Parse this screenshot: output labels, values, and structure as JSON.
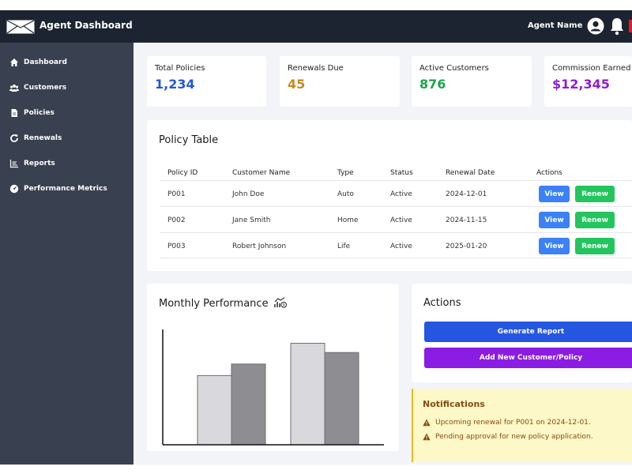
{
  "header": {
    "title": "Agent Dashboard",
    "agent_name": "Agent Name"
  },
  "sidebar": {
    "items": [
      {
        "label": "Dashboard",
        "icon": "home-icon"
      },
      {
        "label": "Customers",
        "icon": "users-icon"
      },
      {
        "label": "Policies",
        "icon": "document-icon"
      },
      {
        "label": "Renewals",
        "icon": "refresh-icon"
      },
      {
        "label": "Reports",
        "icon": "chart-icon"
      },
      {
        "label": "Performance Metrics",
        "icon": "gauge-icon"
      }
    ]
  },
  "stats": [
    {
      "label": "Total Policies",
      "value": "1,234",
      "color": "#2457d6"
    },
    {
      "label": "Renewals Due",
      "value": "45",
      "color": "#c78a1e"
    },
    {
      "label": "Active Customers",
      "value": "876",
      "color": "#1ea34b"
    },
    {
      "label": "Commission Earned",
      "value": "$12,345",
      "color": "#8a1fd6"
    }
  ],
  "policy_table": {
    "title": "Policy Table",
    "columns": [
      "Policy ID",
      "Customer Name",
      "Type",
      "Status",
      "Renewal Date",
      "Actions"
    ],
    "rows": [
      {
        "id": "P001",
        "customer": "John Doe",
        "type": "Auto",
        "status": "Active",
        "renewal": "2024-12-01"
      },
      {
        "id": "P002",
        "customer": "Jane Smith",
        "type": "Home",
        "status": "Active",
        "renewal": "2024-11-15"
      },
      {
        "id": "P003",
        "customer": "Robert Johnson",
        "type": "Life",
        "status": "Active",
        "renewal": "2025-01-20"
      }
    ],
    "view_label": "View",
    "renew_label": "Renew"
  },
  "performance": {
    "title": "Monthly Performance",
    "icon": "chart-money-icon"
  },
  "chart_data": {
    "type": "bar",
    "categories": [
      "",
      ""
    ],
    "series": [
      {
        "values": [
          0.6,
          0.88
        ],
        "color": "#d9d8dc"
      },
      {
        "values": [
          0.7,
          0.8
        ],
        "color": "#8e8d92"
      }
    ],
    "ylim": [
      0,
      1
    ],
    "grid": false
  },
  "actions": {
    "title": "Actions",
    "generate_report": "Generate Report",
    "add_new": "Add New Customer/Policy"
  },
  "notifications": {
    "title": "Notifications",
    "items": [
      "Upcoming renewal for P001 on 2024-12-01.",
      "Pending approval for new policy application."
    ]
  }
}
